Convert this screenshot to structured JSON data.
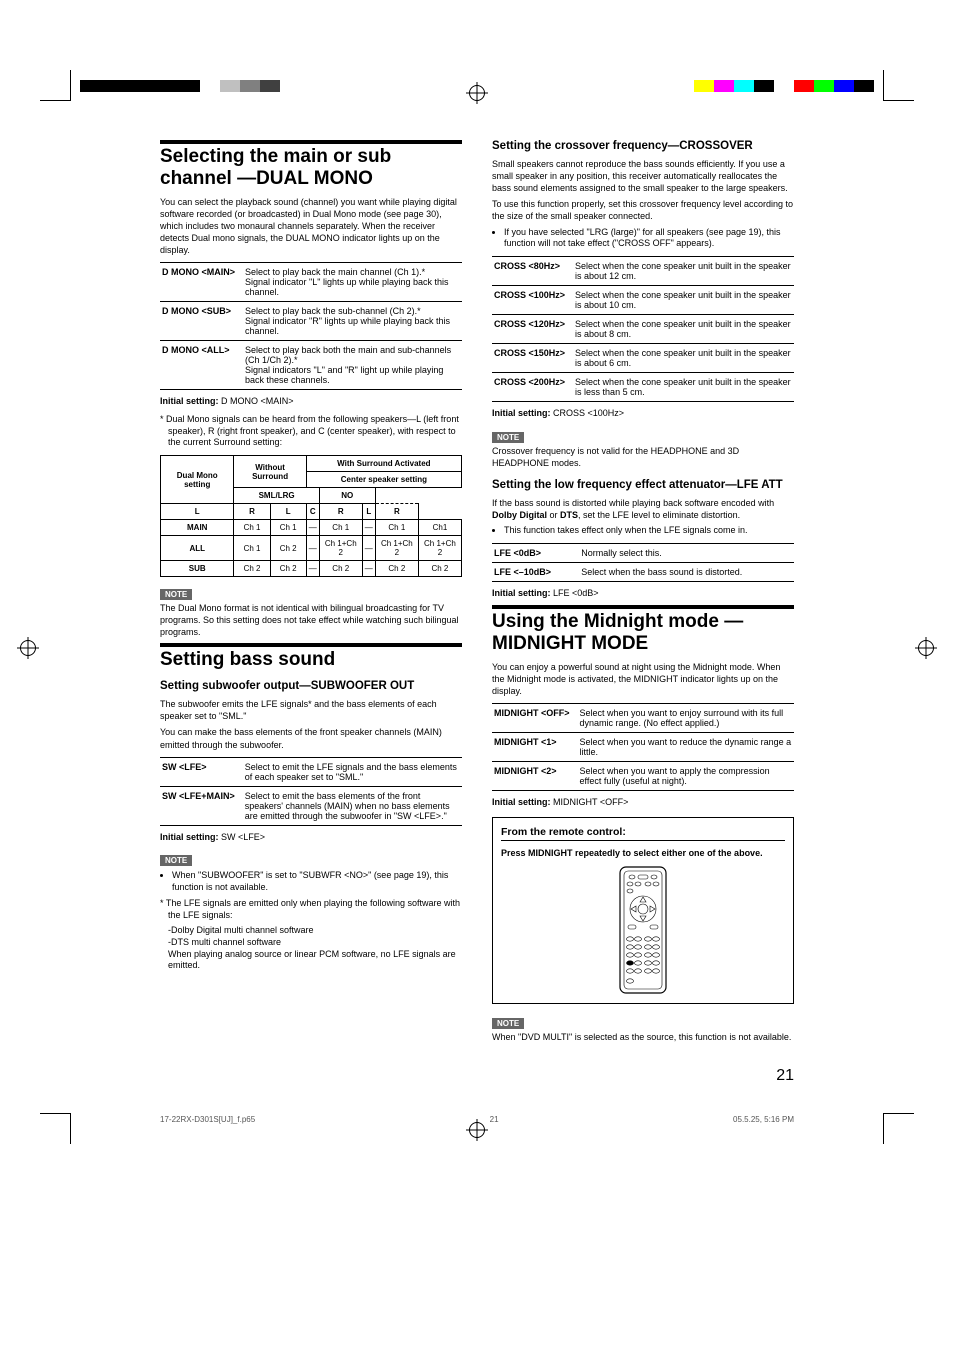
{
  "reg_colors_left": [
    "#000000",
    "#000000",
    "#000000",
    "#000000",
    "#000000",
    "#000000",
    "#ffffff",
    "#c0c0c0",
    "#808080",
    "#404040"
  ],
  "reg_colors_right": [
    "#ffff00",
    "#ff00ff",
    "#00ffff",
    "#000000",
    "#ffffff",
    "#ff0000",
    "#00ff00",
    "#0000ff",
    "#000000"
  ],
  "left": {
    "h1": "Selecting the main or sub channel —DUAL MONO",
    "intro": "You can select the playback sound (channel) you want while playing digital software recorded (or broadcasted) in Dual Mono mode (see page 30), which includes two monaural channels separately. When the receiver detects Dual mono signals, the DUAL MONO indicator lights up on the display.",
    "dmono": [
      {
        "lbl": "D MONO <MAIN>",
        "txt": "Select to play back the main channel (Ch 1).*\nSignal indicator \"L\" lights up while playing back this channel."
      },
      {
        "lbl": "D MONO <SUB>",
        "txt": "Select to play back the sub-channel (Ch 2).*\nSignal indicator \"R\" lights up while playing back this channel."
      },
      {
        "lbl": "D MONO <ALL>",
        "txt": "Select to play back both the main and sub-channels (Ch 1/Ch 2).*\nSignal indicators \"L\" and \"R\" light up while playing back these channels."
      }
    ],
    "initial1_lbl": "Initial setting:",
    "initial1_val": " D MONO <MAIN>",
    "star1": "* Dual Mono signals can be heard from the following speakers—L (left front speaker), R (right front speaker), and C (center speaker), with respect to the current Surround setting:",
    "grid": {
      "head_top": "With Surround Activated",
      "head_dm": "Dual Mono setting",
      "head_ws": "Without Surround",
      "head_css": "Center speaker setting",
      "head_sml": "SML/LRG",
      "head_no": "NO",
      "cols": [
        "L",
        "R",
        "L",
        "C",
        "R",
        "L",
        "R"
      ],
      "rows": [
        {
          "h": "MAIN",
          "c": [
            "Ch 1",
            "Ch 1",
            "—",
            "Ch 1",
            "—",
            "Ch 1",
            "Ch1"
          ]
        },
        {
          "h": "ALL",
          "c": [
            "Ch 1",
            "Ch 2",
            "—",
            "Ch 1+Ch 2",
            "—",
            "Ch 1+Ch 2",
            "Ch 1+Ch 2"
          ]
        },
        {
          "h": "SUB",
          "c": [
            "Ch 2",
            "Ch 2",
            "—",
            "Ch 2",
            "—",
            "Ch 2",
            "Ch 2"
          ]
        }
      ]
    },
    "note1_badge": "NOTE",
    "note1": "The Dual Mono format is not identical with bilingual broadcasting for TV programs. So this setting does not take effect while watching such bilingual programs.",
    "h1b": "Setting bass sound",
    "h2a": "Setting subwoofer output—SUBWOOFER OUT",
    "p2a": "The subwoofer emits the LFE signals* and the bass elements of each speaker set to \"SML.\"",
    "p2b": "You can make the bass elements of the front speaker channels (MAIN) emitted through the subwoofer.",
    "sw": [
      {
        "lbl": "SW <LFE>",
        "txt": "Select to emit the LFE signals and the bass elements of each speaker set to \"SML.\""
      },
      {
        "lbl": "SW <LFE+MAIN>",
        "txt": "Select to emit the bass elements of the front speakers' channels (MAIN) when no bass elements are emitted through the subwoofer in \"SW <LFE>.\""
      }
    ],
    "initial2_lbl": "Initial setting:",
    "initial2_val": " SW <LFE>",
    "note2_badge": "NOTE",
    "note2_items": [
      "When \"SUBWOOFER\" is set to \"SUBWFR <NO>\" (see page 19), this function is not available."
    ],
    "star2": "* The LFE signals are emitted only when playing the following software with the LFE signals:",
    "star2_lines": [
      "-Dolby Digital multi channel software",
      "-DTS multi channel software",
      "When playing analog source or linear PCM software, no LFE signals are emitted."
    ]
  },
  "right": {
    "h2a": "Setting the crossover frequency—CROSSOVER",
    "p1": "Small speakers cannot reproduce the bass sounds efficiently. If you use a small speaker in any position, this receiver automatically reallocates the bass sound elements assigned to the small speaker to the large speakers.",
    "p2": "To use this function properly, set this crossover frequency level according to the size of the small speaker connected.",
    "bullet1": "If you have selected \"LRG (large)\" for all speakers (see page 19), this function will not take effect (\"CROSS OFF\" appears).",
    "cross": [
      {
        "lbl": "CROSS <80Hz>",
        "txt": "Select when the cone speaker unit built in the speaker is about 12 cm."
      },
      {
        "lbl": "CROSS <100Hz>",
        "txt": "Select when the cone speaker unit built in the speaker is about 10 cm."
      },
      {
        "lbl": "CROSS <120Hz>",
        "txt": "Select when the cone speaker unit built in the speaker is about 8 cm."
      },
      {
        "lbl": "CROSS <150Hz>",
        "txt": "Select when the cone speaker unit built in the speaker is about 6 cm."
      },
      {
        "lbl": "CROSS <200Hz>",
        "txt": "Select when the cone speaker unit built in the speaker is less than 5 cm."
      }
    ],
    "initial3_lbl": "Initial setting:",
    "initial3_val": " CROSS <100Hz>",
    "note3_badge": "NOTE",
    "note3": "Crossover frequency is not valid for the HEADPHONE and 3D HEADPHONE modes.",
    "h2b": "Setting the low frequency effect attenuator—LFE ATT",
    "p3": "If the bass sound is distorted while playing back software encoded with Dolby Digital or DTS, set the LFE level to eliminate distortion.",
    "bullet2": "This function takes effect only when the LFE signals come in.",
    "lfe": [
      {
        "lbl": "LFE <0dB>",
        "txt": "Normally select this."
      },
      {
        "lbl": "LFE <–10dB>",
        "txt": "Select when the bass sound is distorted."
      }
    ],
    "initial4_lbl": "Initial setting:",
    "initial4_val": " LFE <0dB>",
    "h1": "Using the Midnight mode —MIDNIGHT MODE",
    "p4": "You can enjoy a powerful sound at night using the Midnight mode. When the Midnight mode is activated, the MIDNIGHT indicator lights up on the display.",
    "midnight": [
      {
        "lbl": "MIDNIGHT <OFF>",
        "txt": "Select when you want to enjoy surround with its full dynamic range. (No effect applied.)"
      },
      {
        "lbl": "MIDNIGHT <1>",
        "txt": "Select when you want to reduce the dynamic range a little."
      },
      {
        "lbl": "MIDNIGHT <2>",
        "txt": "Select when you want to apply the compression effect fully (useful at night)."
      }
    ],
    "initial5_lbl": "Initial setting:",
    "initial5_val": " MIDNIGHT <OFF>",
    "remote_title": "From the remote control:",
    "remote_text": "Press MIDNIGHT repeatedly to select either one of the above.",
    "note4_badge": "NOTE",
    "note4": "When \"DVD MULTI\" is selected as the source, this function is not available."
  },
  "page_number": "21",
  "footer_left": "17-22RX-D301S[UJ]_f.p65",
  "footer_mid": "21",
  "footer_right": "05.5.25, 5:16 PM"
}
